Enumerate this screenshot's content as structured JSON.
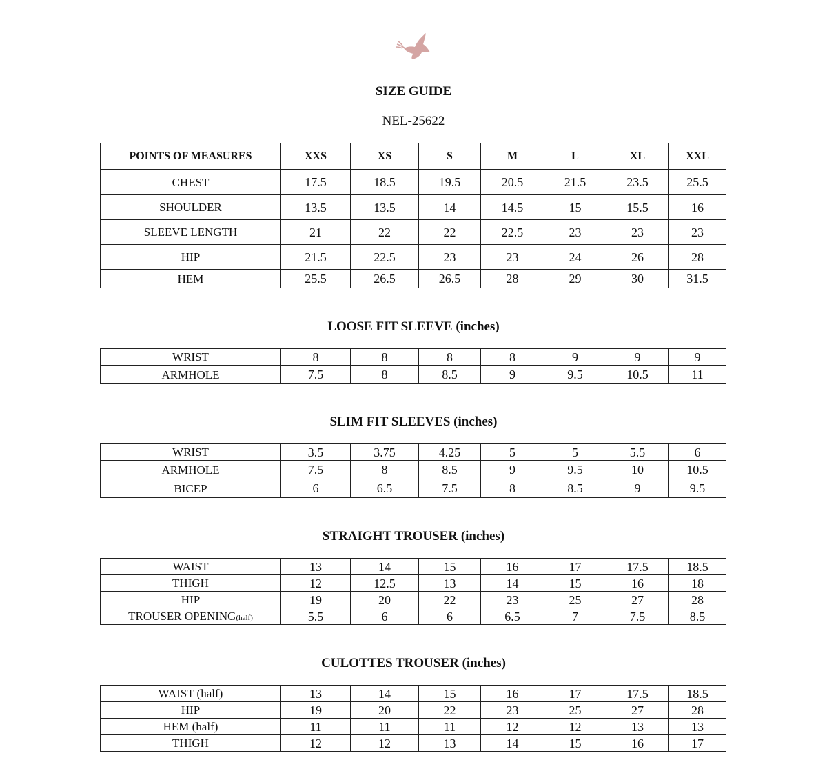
{
  "logo": {
    "icon": "dove-icon",
    "color": "#d4a5a3"
  },
  "title": "SIZE GUIDE",
  "style_code": "NEL-25622",
  "sizes": [
    "XXS",
    "XS",
    "S",
    "M",
    "L",
    "XL",
    "XXL"
  ],
  "main_table": {
    "header_label": "POINTS OF MEASURES",
    "rows": [
      {
        "label": "CHEST",
        "values": [
          "17.5",
          "18.5",
          "19.5",
          "20.5",
          "21.5",
          "23.5",
          "25.5"
        ]
      },
      {
        "label": "SHOULDER",
        "values": [
          "13.5",
          "13.5",
          "14",
          "14.5",
          "15",
          "15.5",
          "16"
        ]
      },
      {
        "label": "SLEEVE LENGTH",
        "values": [
          "21",
          "22",
          "22",
          "22.5",
          "23",
          "23",
          "23"
        ]
      },
      {
        "label": "HIP",
        "values": [
          "21.5",
          "22.5",
          "23",
          "23",
          "24",
          "26",
          "28"
        ]
      },
      {
        "label": "HEM",
        "values": [
          "25.5",
          "26.5",
          "26.5",
          "28",
          "29",
          "30",
          "31.5"
        ]
      }
    ]
  },
  "loose_fit_sleeve": {
    "title": "LOOSE FIT SLEEVE (inches)",
    "rows": [
      {
        "label": "WRIST",
        "values": [
          "8",
          "8",
          "8",
          "8",
          "9",
          "9",
          "9"
        ]
      },
      {
        "label": "ARMHOLE",
        "values": [
          "7.5",
          "8",
          "8.5",
          "9",
          "9.5",
          "10.5",
          "11"
        ]
      }
    ]
  },
  "slim_fit_sleeves": {
    "title": "SLIM FIT SLEEVES (inches)",
    "rows": [
      {
        "label": "WRIST",
        "values": [
          "3.5",
          "3.75",
          "4.25",
          "5",
          "5",
          "5.5",
          "6"
        ]
      },
      {
        "label": "ARMHOLE",
        "values": [
          "7.5",
          "8",
          "8.5",
          "9",
          "9.5",
          "10",
          "10.5"
        ]
      },
      {
        "label": "BICEP",
        "values": [
          "6",
          "6.5",
          "7.5",
          "8",
          "8.5",
          "9",
          "9.5"
        ]
      }
    ]
  },
  "straight_trouser": {
    "title": "STRAIGHT TROUSER (inches)",
    "rows": [
      {
        "label": "WAIST",
        "values": [
          "13",
          "14",
          "15",
          "16",
          "17",
          "17.5",
          "18.5"
        ]
      },
      {
        "label": "THIGH",
        "values": [
          "12",
          "12.5",
          "13",
          "14",
          "15",
          "16",
          "18"
        ]
      },
      {
        "label": "HIP",
        "values": [
          "19",
          "20",
          "22",
          "23",
          "25",
          "27",
          "28"
        ]
      },
      {
        "label": "TROUSER OPENING",
        "note": "(half)",
        "values": [
          "5.5",
          "6",
          "6",
          "6.5",
          "7",
          "7.5",
          "8.5"
        ]
      }
    ]
  },
  "culottes_trouser": {
    "title": "CULOTTES TROUSER (inches)",
    "rows": [
      {
        "label": "WAIST (half)",
        "values": [
          "13",
          "14",
          "15",
          "16",
          "17",
          "17.5",
          "18.5"
        ]
      },
      {
        "label": "HIP",
        "values": [
          "19",
          "20",
          "22",
          "23",
          "25",
          "27",
          "28"
        ]
      },
      {
        "label": "HEM (half)",
        "values": [
          "11",
          "11",
          "11",
          "12",
          "12",
          "13",
          "13"
        ]
      },
      {
        "label": "THIGH",
        "values": [
          "12",
          "12",
          "13",
          "14",
          "15",
          "16",
          "17"
        ]
      }
    ]
  }
}
